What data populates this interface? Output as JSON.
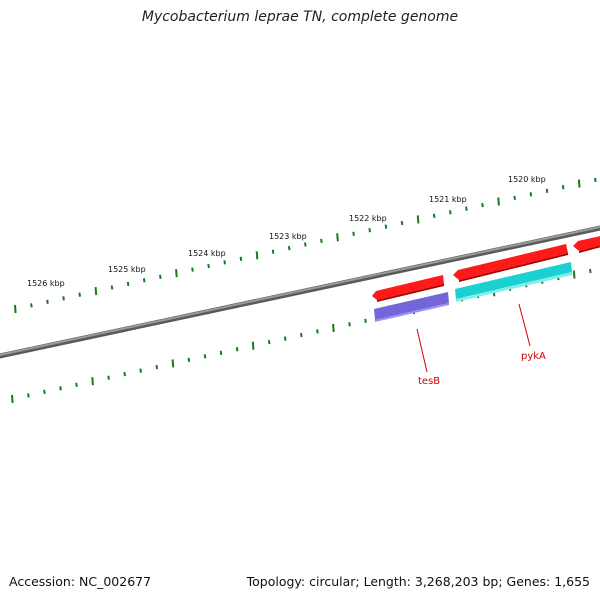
{
  "title": "Mycobacterium leprae TN, complete genome",
  "footer": {
    "accession": "Accession: NC_002677",
    "summary": "Topology: circular; Length: 3,268,203 bp; Genes: 1,655"
  },
  "colors": {
    "backbone": "#808080",
    "ticks": "#1a7a1a",
    "forward_gene": "#ff1a1a",
    "reverse_gene": "#1ad0d0",
    "tesB_gene": "#7366d9",
    "label": "#d00000"
  },
  "scale": {
    "unit": "kbp",
    "labels": [
      {
        "kbp": 1526,
        "text": "1526 kbp"
      },
      {
        "kbp": 1525,
        "text": "1525 kbp"
      },
      {
        "kbp": 1524,
        "text": "1524 kbp"
      },
      {
        "kbp": 1523,
        "text": "1523 kbp"
      },
      {
        "kbp": 1522,
        "text": "1522 kbp"
      },
      {
        "kbp": 1521,
        "text": "1521 kbp"
      },
      {
        "kbp": 1520,
        "text": "1520 kbp"
      }
    ]
  },
  "genes": [
    {
      "name": "tesB",
      "labeled": true
    },
    {
      "name": "pykA",
      "labeled": true
    }
  ]
}
